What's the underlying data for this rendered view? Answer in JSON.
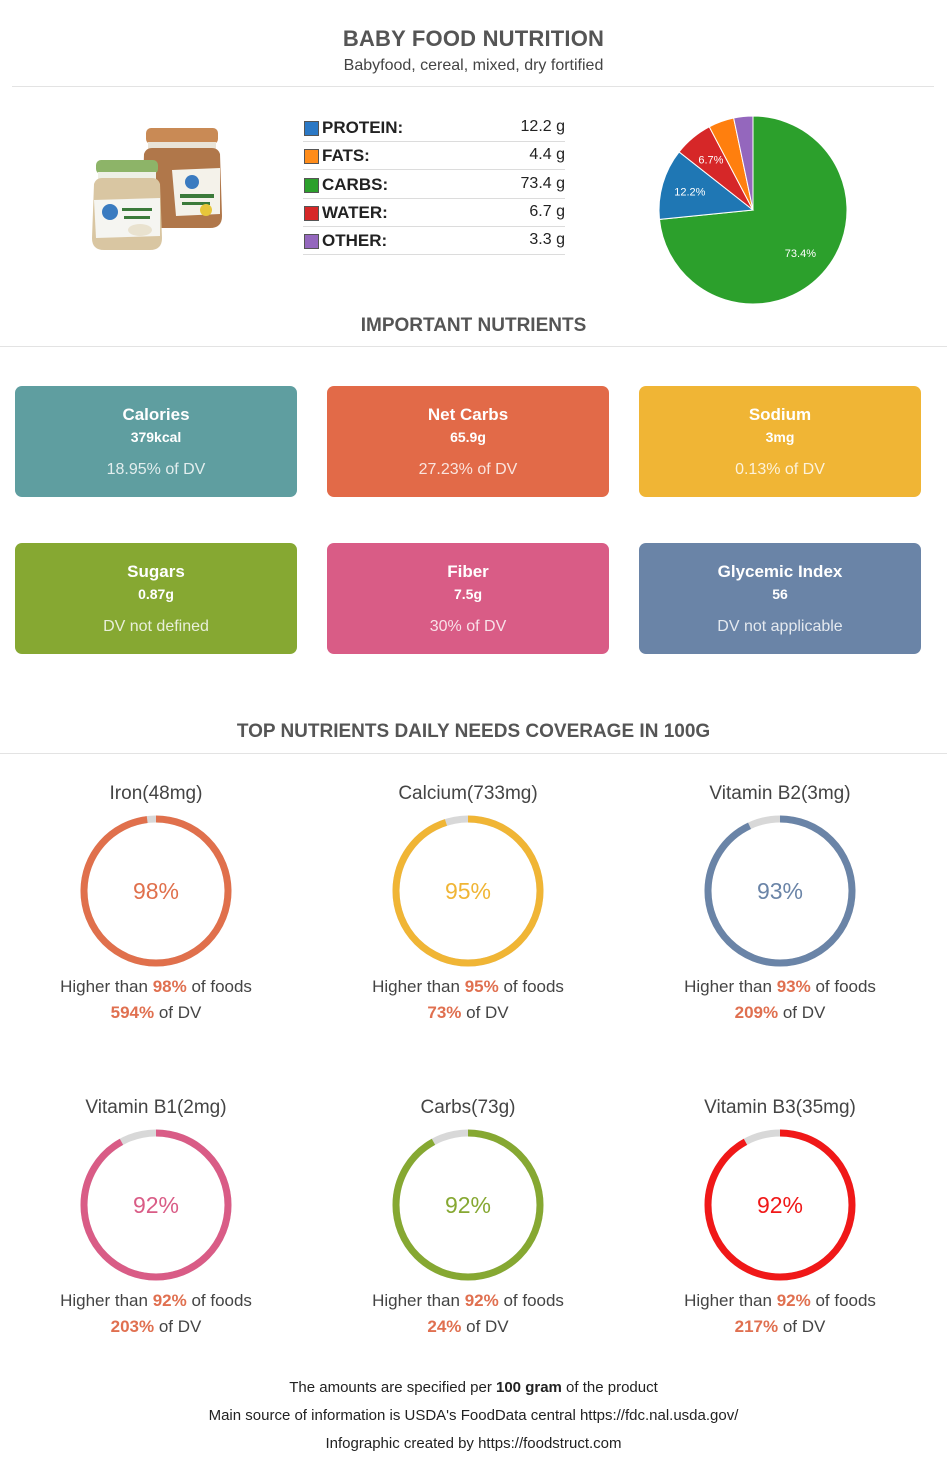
{
  "header": {
    "title": "BABY FOOD NUTRITION",
    "subtitle": "Babyfood, cereal, mixed, dry fortified"
  },
  "macros": [
    {
      "label": "PROTEIN:",
      "value": "12.2 g",
      "color": "#2b78c5"
    },
    {
      "label": "FATS:",
      "value": "4.4 g",
      "color": "#ff8c1a"
    },
    {
      "label": "CARBS:",
      "value": "73.4 g",
      "color": "#2ca02c"
    },
    {
      "label": "WATER:",
      "value": "6.7 g",
      "color": "#d62728"
    },
    {
      "label": "OTHER:",
      "value": "3.3 g",
      "color": "#9467bd"
    }
  ],
  "chart_data": {
    "type": "pie",
    "slices": [
      {
        "name": "Carbs",
        "value": 73.4,
        "label": "73.4%",
        "color": "#2ca02c"
      },
      {
        "name": "Protein",
        "value": 12.2,
        "label": "12.2%",
        "color": "#1f77b4"
      },
      {
        "name": "Water",
        "value": 6.7,
        "label": "6.7%",
        "color": "#d62728"
      },
      {
        "name": "Fats",
        "value": 4.4,
        "label": "",
        "color": "#ff7f0e"
      },
      {
        "name": "Other",
        "value": 3.3,
        "label": "",
        "color": "#9467bd"
      }
    ]
  },
  "important": {
    "title": "IMPORTANT NUTRIENTS",
    "cards": [
      {
        "name": "Calories",
        "value": "379kcal",
        "dv": "18.95% of DV",
        "color": "#5f9ea0"
      },
      {
        "name": "Net Carbs",
        "value": "65.9g",
        "dv": "27.23% of DV",
        "color": "#e26a48"
      },
      {
        "name": "Sodium",
        "value": "3mg",
        "dv": "0.13% of DV",
        "color": "#f0b535"
      },
      {
        "name": "Sugars",
        "value": "0.87g",
        "dv": "DV not defined",
        "color": "#86a832"
      },
      {
        "name": "Fiber",
        "value": "7.5g",
        "dv": "30% of DV",
        "color": "#d95c86"
      },
      {
        "name": "Glycemic Index",
        "value": "56",
        "dv": "DV not applicable",
        "color": "#6a84a7"
      }
    ]
  },
  "coverage": {
    "title": "TOP NUTRIENTS DAILY NEEDS COVERAGE IN 100G",
    "higher_prefix": "Higher than ",
    "higher_suffix": " of foods",
    "dv_suffix": " of DV",
    "items": [
      {
        "name": "Iron(48mg)",
        "percent": 98,
        "percent_label": "98%",
        "dv": "594%",
        "color": "#e0704c"
      },
      {
        "name": "Calcium(733mg)",
        "percent": 95,
        "percent_label": "95%",
        "dv": "73%",
        "color": "#f0b535"
      },
      {
        "name": "Vitamin B2(3mg)",
        "percent": 93,
        "percent_label": "93%",
        "dv": "209%",
        "color": "#6a84a7"
      },
      {
        "name": "Vitamin B1(2mg)",
        "percent": 92,
        "percent_label": "92%",
        "dv": "203%",
        "color": "#d95c86"
      },
      {
        "name": "Carbs(73g)",
        "percent": 92,
        "percent_label": "92%",
        "dv": "24%",
        "color": "#86a832"
      },
      {
        "name": "Vitamin B3(35mg)",
        "percent": 92,
        "percent_label": "92%",
        "dv": "217%",
        "color": "#f01818"
      }
    ]
  },
  "footer": {
    "line1_prefix": "The amounts are specified per ",
    "line1_bold": "100 gram",
    "line1_suffix": " of the product",
    "line2": "Main source of information is USDA's FoodData central https://fdc.nal.usda.gov/",
    "line3": "Infographic created by https://foodstruct.com"
  }
}
